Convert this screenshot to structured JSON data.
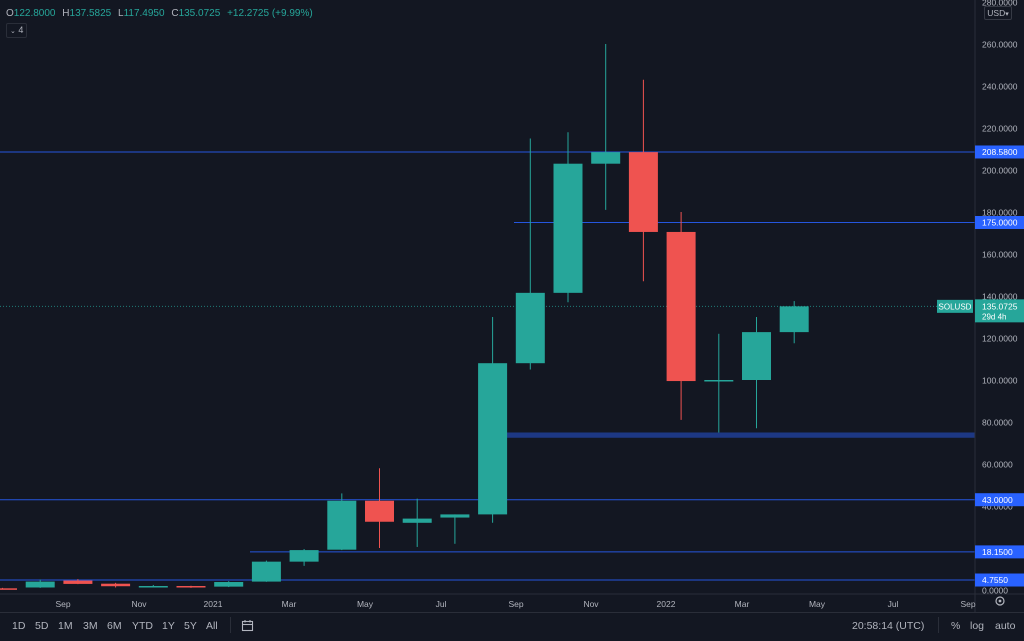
{
  "legend": {
    "open_label": "O",
    "open": "122.8000",
    "high_label": "H",
    "high": "137.5825",
    "low_label": "L",
    "low": "117.4950",
    "close_label": "C",
    "close": "135.0725",
    "change": "+12.2725 (+9.99%)",
    "indicator_count": "4"
  },
  "currency": "USD",
  "ranges": [
    "1D",
    "5D",
    "1M",
    "3M",
    "6M",
    "YTD",
    "1Y",
    "5Y",
    "All"
  ],
  "clock": "20:58:14 (UTC)",
  "options": {
    "percent": "%",
    "log": "log",
    "auto": "auto"
  },
  "colors": {
    "up": "#26a69a",
    "down": "#ef5350",
    "background": "#131722",
    "line": "#2962ff",
    "text": "#b2b5be"
  },
  "chart_data": {
    "type": "candlestick",
    "symbol": "SOLUSD",
    "interval": "1M",
    "ylim": [
      0,
      280
    ],
    "y_ticks": [
      "0.0000",
      "20.0000",
      "40.0000",
      "60.0000",
      "80.0000",
      "100.0000",
      "120.0000",
      "140.0000",
      "160.0000",
      "180.0000",
      "200.0000",
      "220.0000",
      "240.0000",
      "260.0000",
      "280.0000"
    ],
    "x_ticks": [
      "Sep",
      "Nov",
      "2021",
      "Mar",
      "May",
      "Jul",
      "Sep",
      "Nov",
      "2022",
      "Mar",
      "May",
      "Jul",
      "Sep"
    ],
    "candles": [
      {
        "o": 0.8,
        "h": 1.0,
        "l": 0.5,
        "c": 0.7
      },
      {
        "o": 1.2,
        "h": 5.0,
        "l": 1.0,
        "c": 4.0
      },
      {
        "o": 4.5,
        "h": 5.2,
        "l": 2.8,
        "c": 2.9
      },
      {
        "o": 3.0,
        "h": 3.4,
        "l": 1.2,
        "c": 1.8
      },
      {
        "o": 1.5,
        "h": 2.4,
        "l": 1.2,
        "c": 1.9
      },
      {
        "o": 1.9,
        "h": 2.0,
        "l": 1.0,
        "c": 1.4
      },
      {
        "o": 1.6,
        "h": 4.2,
        "l": 1.4,
        "c": 3.8
      },
      {
        "o": 4.0,
        "h": 14.0,
        "l": 3.9,
        "c": 13.5
      },
      {
        "o": 13.5,
        "h": 19.5,
        "l": 11.5,
        "c": 19.0
      },
      {
        "o": 19.2,
        "h": 46.0,
        "l": 19.0,
        "c": 42.5
      },
      {
        "o": 42.5,
        "h": 58.0,
        "l": 20.0,
        "c": 32.5
      },
      {
        "o": 32.0,
        "h": 43.5,
        "l": 20.5,
        "c": 34.0
      },
      {
        "o": 34.5,
        "h": 36.0,
        "l": 22.0,
        "c": 36.0
      },
      {
        "o": 36.0,
        "h": 130.0,
        "l": 32.0,
        "c": 108.0
      },
      {
        "o": 108.0,
        "h": 215.0,
        "l": 105.0,
        "c": 141.5
      },
      {
        "o": 141.5,
        "h": 218.0,
        "l": 137.0,
        "c": 203.0
      },
      {
        "o": 203.0,
        "h": 260.0,
        "l": 181.0,
        "c": 208.5
      },
      {
        "o": 208.5,
        "h": 243.0,
        "l": 147.0,
        "c": 170.5
      },
      {
        "o": 170.5,
        "h": 180.0,
        "l": 81.0,
        "c": 99.5
      },
      {
        "o": 99.5,
        "h": 122.0,
        "l": 75.0,
        "c": 100.0
      },
      {
        "o": 100.0,
        "h": 130.0,
        "l": 77.0,
        "c": 122.8
      },
      {
        "o": 122.8,
        "h": 137.5825,
        "l": 117.495,
        "c": 135.0725
      }
    ],
    "levels": [
      {
        "value": 208.58,
        "label": "208.5800"
      },
      {
        "value": 175.0,
        "label": "175.0000"
      },
      {
        "value": 43.0,
        "label": "43.0000"
      },
      {
        "value": 18.15,
        "label": "18.1500"
      },
      {
        "value": 4.755,
        "label": "4.7550"
      }
    ],
    "zone": {
      "low": 72.5,
      "high": 75.0
    },
    "last_price": {
      "symbol": "SOLUSD",
      "price": "135.0725",
      "countdown": "29d 4h"
    }
  }
}
